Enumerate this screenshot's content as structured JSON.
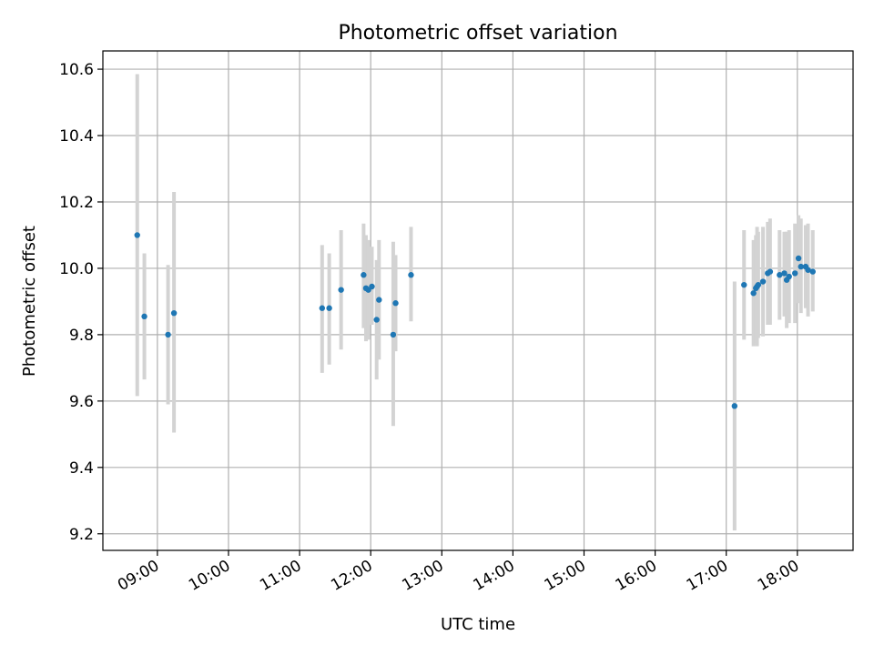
{
  "chart_data": {
    "type": "scatter",
    "title": "Photometric offset variation",
    "xlabel": "UTC time",
    "ylabel": "Photometric offset",
    "x_tick_labels": [
      "09:00",
      "10:00",
      "11:00",
      "12:00",
      "13:00",
      "14:00",
      "15:00",
      "16:00",
      "17:00",
      "18:00"
    ],
    "y_tick_labels": [
      "9.2",
      "9.4",
      "9.6",
      "9.8",
      "10.0",
      "10.2",
      "10.4",
      "10.6"
    ],
    "xlim": [
      "08:14",
      "18:47"
    ],
    "ylim": [
      9.15,
      10.655
    ],
    "grid": true,
    "colors": {
      "points": "#1f77b4",
      "errorbars": "#d3d3d3",
      "grid": "#b0b0b0"
    },
    "series": [
      {
        "points": [
          {
            "x": "08:43",
            "y": 10.1,
            "ylow": 9.615,
            "yhigh": 10.585
          },
          {
            "x": "08:49",
            "y": 9.855,
            "ylow": 9.665,
            "yhigh": 10.045
          },
          {
            "x": "09:09",
            "y": 9.8,
            "ylow": 9.59,
            "yhigh": 10.01
          },
          {
            "x": "09:14",
            "y": 9.865,
            "ylow": 9.505,
            "yhigh": 10.23
          },
          {
            "x": "11:19",
            "y": 9.88,
            "ylow": 9.685,
            "yhigh": 10.07
          },
          {
            "x": "11:25",
            "y": 9.88,
            "ylow": 9.71,
            "yhigh": 10.045
          },
          {
            "x": "11:35",
            "y": 9.935,
            "ylow": 9.755,
            "yhigh": 10.115
          },
          {
            "x": "11:54",
            "y": 9.98,
            "ylow": 9.82,
            "yhigh": 10.135
          },
          {
            "x": "11:56",
            "y": 9.94,
            "ylow": 9.78,
            "yhigh": 10.1
          },
          {
            "x": "11:58",
            "y": 9.935,
            "ylow": 9.785,
            "yhigh": 10.085
          },
          {
            "x": "12:01",
            "y": 9.945,
            "ylow": 9.83,
            "yhigh": 10.065
          },
          {
            "x": "12:05",
            "y": 9.845,
            "ylow": 9.665,
            "yhigh": 10.025
          },
          {
            "x": "12:07",
            "y": 9.905,
            "ylow": 9.725,
            "yhigh": 10.085
          },
          {
            "x": "12:19",
            "y": 9.8,
            "ylow": 9.525,
            "yhigh": 10.08
          },
          {
            "x": "12:21",
            "y": 9.895,
            "ylow": 9.75,
            "yhigh": 10.04
          },
          {
            "x": "12:34",
            "y": 9.98,
            "ylow": 9.84,
            "yhigh": 10.125
          },
          {
            "x": "17:07",
            "y": 9.585,
            "ylow": 9.21,
            "yhigh": 9.96
          },
          {
            "x": "17:15",
            "y": 9.95,
            "ylow": 9.785,
            "yhigh": 10.115
          },
          {
            "x": "17:23",
            "y": 9.925,
            "ylow": 9.765,
            "yhigh": 10.085
          },
          {
            "x": "17:25",
            "y": 9.94,
            "ylow": 9.775,
            "yhigh": 10.1
          },
          {
            "x": "17:26",
            "y": 9.945,
            "ylow": 9.765,
            "yhigh": 10.125
          },
          {
            "x": "17:27",
            "y": 9.95,
            "ylow": 9.79,
            "yhigh": 10.11
          },
          {
            "x": "17:31",
            "y": 9.96,
            "ylow": 9.795,
            "yhigh": 10.125
          },
          {
            "x": "17:35",
            "y": 9.985,
            "ylow": 9.83,
            "yhigh": 10.14
          },
          {
            "x": "17:37",
            "y": 9.99,
            "ylow": 9.83,
            "yhigh": 10.15
          },
          {
            "x": "17:45",
            "y": 9.98,
            "ylow": 9.845,
            "yhigh": 10.115
          },
          {
            "x": "17:49",
            "y": 9.985,
            "ylow": 9.855,
            "yhigh": 10.11
          },
          {
            "x": "17:51",
            "y": 9.965,
            "ylow": 9.82,
            "yhigh": 10.11
          },
          {
            "x": "17:53",
            "y": 9.975,
            "ylow": 9.835,
            "yhigh": 10.115
          },
          {
            "x": "17:58",
            "y": 9.985,
            "ylow": 9.835,
            "yhigh": 10.135
          },
          {
            "x": "18:01",
            "y": 10.03,
            "ylow": 9.895,
            "yhigh": 10.16
          },
          {
            "x": "18:03",
            "y": 10.005,
            "ylow": 9.865,
            "yhigh": 10.15
          },
          {
            "x": "18:07",
            "y": 10.005,
            "ylow": 9.88,
            "yhigh": 10.13
          },
          {
            "x": "18:09",
            "y": 9.995,
            "ylow": 9.855,
            "yhigh": 10.135
          },
          {
            "x": "18:13",
            "y": 9.99,
            "ylow": 9.87,
            "yhigh": 10.115
          }
        ]
      }
    ]
  }
}
